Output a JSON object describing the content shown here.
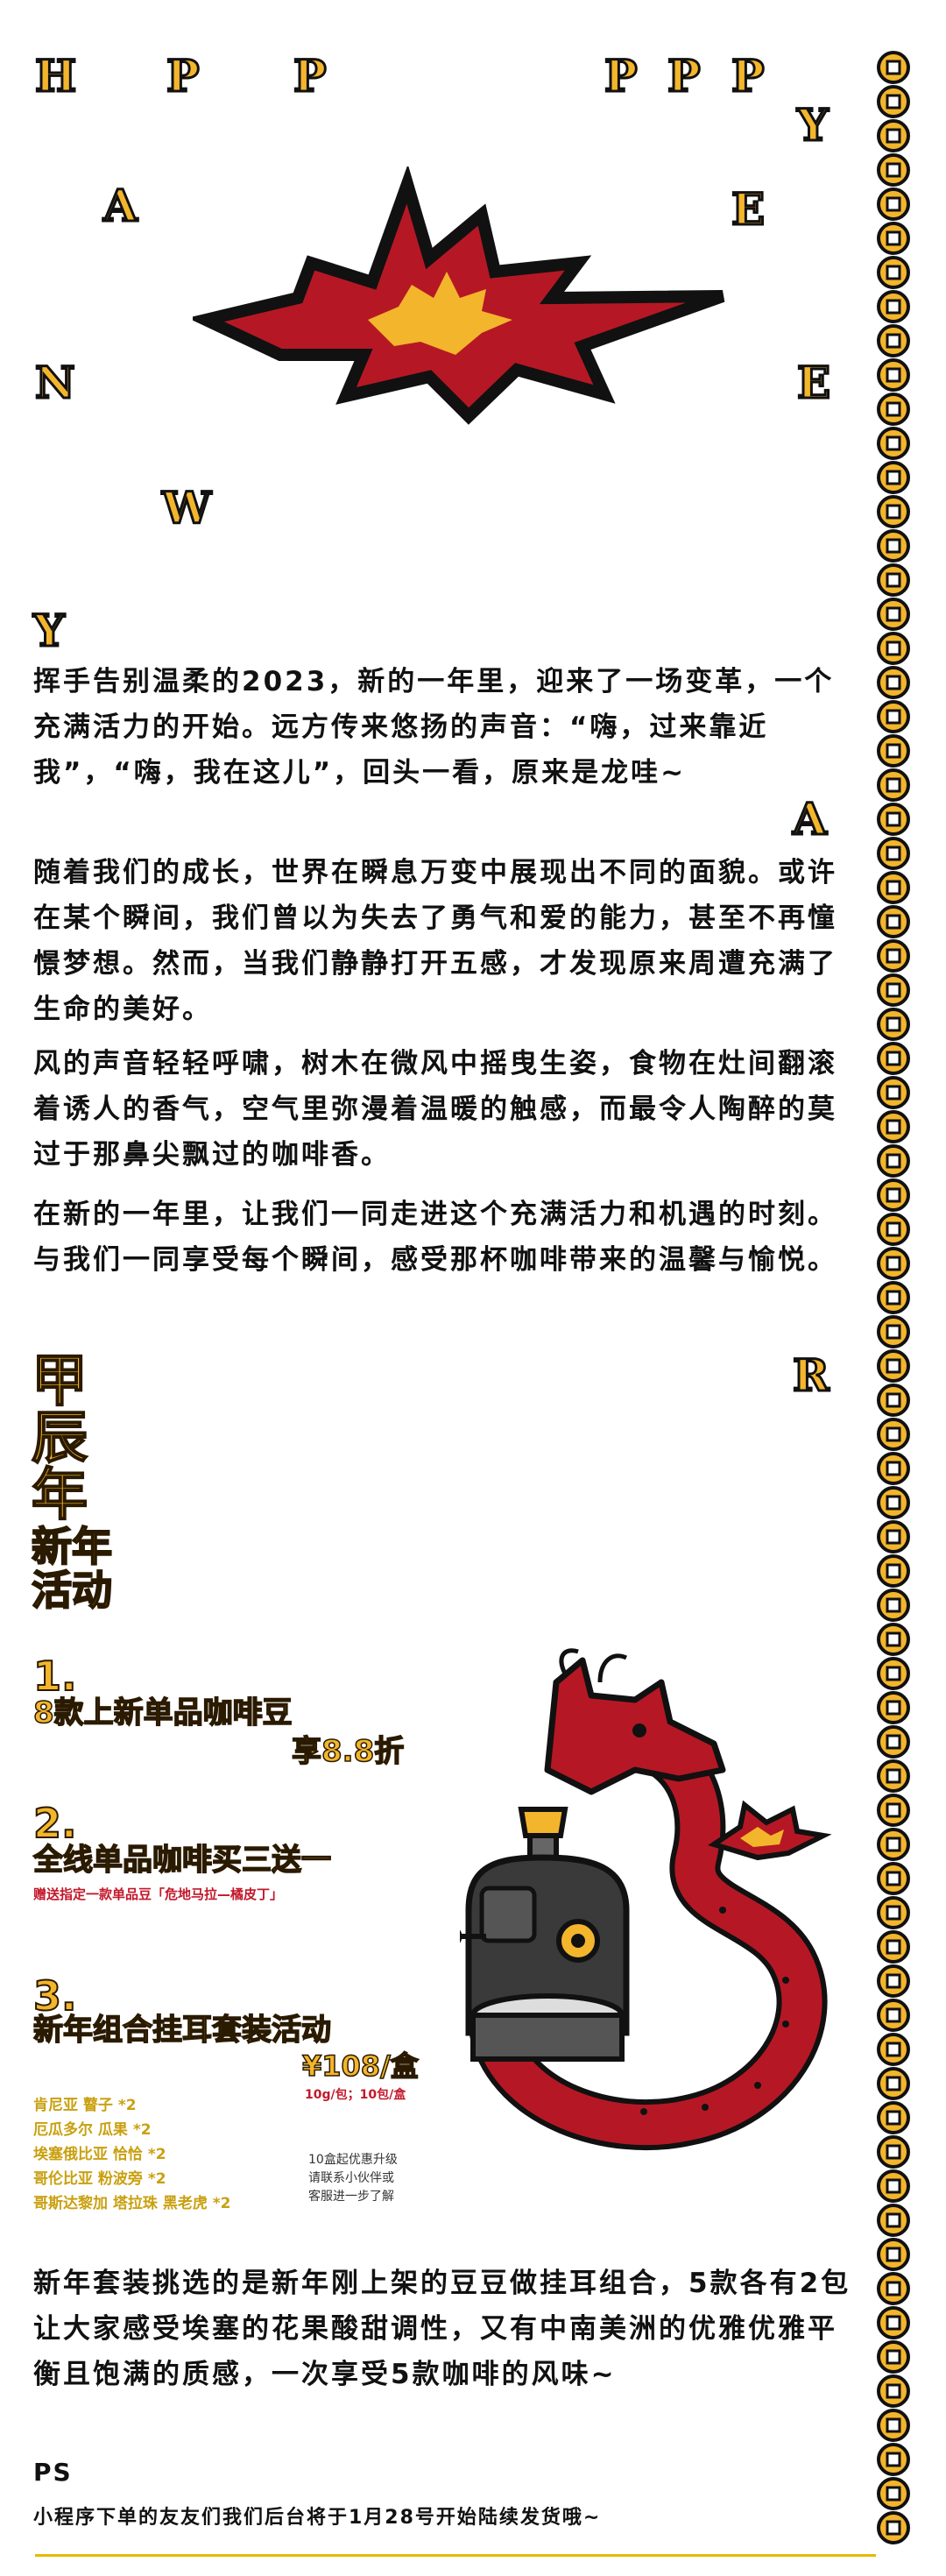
{
  "header_letters": {
    "h": "H",
    "p1": "P",
    "p2": "P",
    "p3": "P",
    "p4": "P",
    "p5": "P",
    "y1": "Y",
    "a1": "A",
    "e1": "E",
    "n": "N",
    "e2": "E",
    "w": "W",
    "y2": "Y",
    "a2": "A",
    "r": "R"
  },
  "intro_paragraphs": [
    "挥手告别温柔的2023，新的一年里，迎来了一场变革，一个充满活力的开始。远方传来悠扬的声音：“嗨，过来靠近我”，“嗨，我在这儿”，回头一看，原来是龙哇~",
    "随着我们的成长，世界在瞬息万变中展现出不同的面貌。或许在某个瞬间，我们曾以为失去了勇气和爱的能力，甚至不再憧憬梦想。然而，当我们静静打开五感，才发现原来周遭充满了生命的美好。",
    "风的声音轻轻呼啸，树木在微风中摇曳生姿，食物在灶间翻滚着诱人的香气，空气里弥漫着温暖的触感，而最令人陶醉的莫过于那鼻尖飘过的咖啡香。",
    "在新的一年里，让我们一同走进这个充满活力和机遇的时刻。与我们一同享受每个瞬间，感受那杯咖啡带来的温馨与愉悦。"
  ],
  "event_title": {
    "line1": "甲",
    "line2": "辰",
    "line3": "年",
    "line4": "新年",
    "line5": "活动"
  },
  "activities": [
    {
      "num": "1.",
      "title": "8款上新单品咖啡豆",
      "title2": "享8.8折"
    },
    {
      "num": "2.",
      "title": "全线单品咖啡买三送一",
      "sub": "赠送指定一款单品豆「危地马拉—橘皮丁」"
    },
    {
      "num": "3.",
      "title": "新年组合挂耳套装活动",
      "price": "¥108/盒",
      "spec": "10g/包；10包/盒"
    }
  ],
  "beans": [
    "肯尼亚 瞽子 *2",
    "厄瓜多尔 瓜果 *2",
    "埃塞俄比亚 恰恰 *2",
    "哥伦比亚 粉波旁 *2",
    "哥斯达黎加 塔拉珠 黑老虎 *2"
  ],
  "side_note": "10盒起优惠升级\n请联系小伙伴或\n客服进一步了解",
  "closing_paragraph": "新年套装挑选的是新年刚上架的豆豆做挂耳组合，5款各有2包让大家感受埃塞的花果酸甜调性，又有中南美洲的优雅优雅平衡且饱满的质感，一次享受5款咖啡的风味~",
  "ps_label": "PS",
  "ps_text": "小程序下单的友友们我们后台将于1月28号开始陆续发货哦~",
  "colors": {
    "gold": "#f3b52c",
    "red": "#c2182b",
    "dark": "#111111",
    "border": "#e8b800"
  }
}
